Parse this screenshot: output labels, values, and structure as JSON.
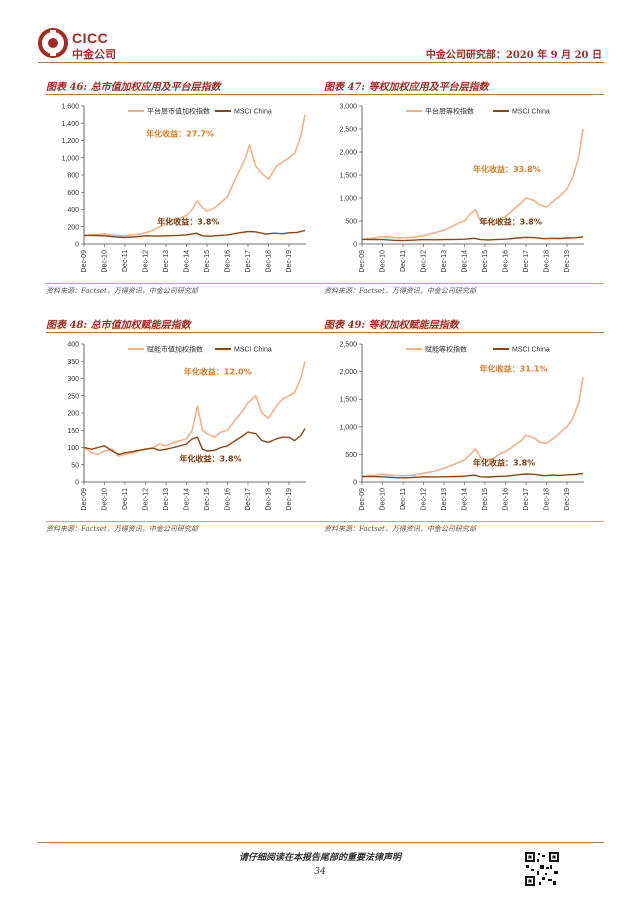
{
  "header": {
    "logo_text_top": "CICC",
    "logo_text_bottom": "中金公司",
    "right_text": "中金公司研究部：2020 年 9 月 20 日",
    "brand_color": "#a52a23"
  },
  "panels": [
    {
      "title": "图表 46: 总市值加权应用及平台层指数",
      "source": "资料来源：Factset，万得资讯，中金公司研究部",
      "annotations": {
        "top": "年化收益：27.7%",
        "bottom": "年化收益：3.8%"
      }
    },
    {
      "title": "图表 47: 等权加权应用及平台层指数",
      "source": "资料来源：Factset，万得资讯，中金公司研究部",
      "annotations": {
        "top": "年化收益：33.8%",
        "bottom": "年化收益：3.8%"
      }
    },
    {
      "title": "图表 48: 总市值加权赋能层指数",
      "source": "资料来源：Factset，万得资讯，中金公司研究部",
      "annotations": {
        "top": "年化收益：12.0%",
        "bottom": "年化收益：3.8%"
      }
    },
    {
      "title": "图表 49: 等权加权赋能层指数",
      "source": "资料来源：Factset，万得资讯，中金公司研究部",
      "annotations": {
        "top": "年化收益：31.1%",
        "bottom": "年化收益：3.8%"
      }
    }
  ],
  "footer": {
    "disclaimer": "请仔细阅读在本报告尾部的重要法律声明",
    "page_number": "34"
  },
  "colors": {
    "index_line": "#f4b183",
    "msci_line": "#8b4513",
    "annot_top": "#e07b20",
    "annot_bottom": "#7a3b10"
  },
  "chart_data": [
    {
      "type": "line",
      "x_ticks": [
        "Dec-09",
        "Dec-10",
        "Dec-11",
        "Dec-12",
        "Dec-13",
        "Dec-14",
        "Dec-15",
        "Dec-16",
        "Dec-17",
        "Dec-18",
        "Dec-19"
      ],
      "ylim": [
        0,
        1600
      ],
      "y_ticks": [
        0,
        200,
        400,
        600,
        800,
        1000,
        1200,
        1400,
        1600
      ],
      "series": [
        {
          "name": "平台层市值加权指数",
          "color": "#f4b183",
          "x": [
            2009.92,
            2010.5,
            2010.92,
            2011.5,
            2011.92,
            2012.5,
            2012.92,
            2013.3,
            2013.6,
            2013.92,
            2014.3,
            2014.6,
            2014.92,
            2015.2,
            2015.45,
            2015.7,
            2015.92,
            2016.3,
            2016.6,
            2016.92,
            2017.2,
            2017.5,
            2017.8,
            2018.0,
            2018.3,
            2018.6,
            2018.92,
            2019.3,
            2019.6,
            2019.92,
            2020.2,
            2020.5,
            2020.7
          ],
          "y": [
            100,
            110,
            115,
            100,
            95,
            110,
            130,
            160,
            200,
            230,
            280,
            300,
            330,
            400,
            500,
            420,
            380,
            420,
            480,
            550,
            700,
            850,
            1000,
            1150,
            900,
            820,
            750,
            900,
            950,
            1000,
            1050,
            1250,
            1500
          ]
        },
        {
          "name": "MSCI China",
          "color": "#8b4513",
          "x": [
            2009.92,
            2010.5,
            2010.92,
            2011.5,
            2011.92,
            2012.5,
            2012.92,
            2013.5,
            2013.92,
            2014.5,
            2014.92,
            2015.4,
            2015.7,
            2016.1,
            2016.5,
            2016.92,
            2017.5,
            2017.92,
            2018.3,
            2018.8,
            2019.2,
            2019.6,
            2019.92,
            2020.3,
            2020.7
          ],
          "y": [
            100,
            98,
            95,
            80,
            75,
            85,
            95,
            92,
            95,
            100,
            105,
            125,
            95,
            90,
            100,
            105,
            130,
            145,
            140,
            115,
            125,
            120,
            130,
            135,
            155
          ]
        }
      ],
      "annotations": [
        "年化收益：27.7%",
        "年化收益：3.8%"
      ]
    },
    {
      "type": "line",
      "x_ticks": [
        "Dec-09",
        "Dec-10",
        "Dec-11",
        "Dec-12",
        "Dec-13",
        "Dec-14",
        "Dec-15",
        "Dec-16",
        "Dec-17",
        "Dec-18",
        "Dec-19"
      ],
      "ylim": [
        0,
        3000
      ],
      "y_ticks": [
        0,
        500,
        1000,
        1500,
        2000,
        2500,
        3000
      ],
      "series": [
        {
          "name": "平台层等权指数",
          "color": "#f4b183",
          "x": [
            2009.92,
            2010.5,
            2010.92,
            2011.5,
            2011.92,
            2012.5,
            2012.92,
            2013.5,
            2013.92,
            2014.3,
            2014.6,
            2014.92,
            2015.2,
            2015.45,
            2015.7,
            2015.92,
            2016.3,
            2016.6,
            2016.92,
            2017.3,
            2017.7,
            2017.92,
            2018.3,
            2018.6,
            2018.92,
            2019.3,
            2019.6,
            2019.92,
            2020.2,
            2020.5,
            2020.7
          ],
          "y": [
            100,
            130,
            160,
            140,
            130,
            150,
            180,
            250,
            300,
            380,
            450,
            500,
            650,
            750,
            500,
            450,
            480,
            520,
            600,
            750,
            900,
            1000,
            950,
            850,
            800,
            950,
            1050,
            1200,
            1450,
            1900,
            2500
          ]
        },
        {
          "name": "MSCI China",
          "color": "#8b4513",
          "x": [
            2009.92,
            2010.5,
            2010.92,
            2011.5,
            2011.92,
            2012.5,
            2012.92,
            2013.5,
            2013.92,
            2014.5,
            2014.92,
            2015.4,
            2015.7,
            2016.1,
            2016.5,
            2016.92,
            2017.5,
            2017.92,
            2018.3,
            2018.8,
            2019.2,
            2019.6,
            2019.92,
            2020.3,
            2020.7
          ],
          "y": [
            100,
            98,
            95,
            80,
            75,
            85,
            95,
            92,
            95,
            100,
            105,
            125,
            95,
            90,
            100,
            105,
            130,
            145,
            140,
            115,
            125,
            120,
            130,
            135,
            155
          ]
        }
      ],
      "annotations": [
        "年化收益：33.8%",
        "年化收益：3.8%"
      ]
    },
    {
      "type": "line",
      "x_ticks": [
        "Dec-09",
        "Dec-10",
        "Dec-11",
        "Dec-12",
        "Dec-13",
        "Dec-14",
        "Dec-15",
        "Dec-16",
        "Dec-17",
        "Dec-18",
        "Dec-19"
      ],
      "ylim": [
        0,
        400
      ],
      "y_ticks": [
        0,
        50,
        100,
        150,
        200,
        250,
        300,
        350,
        400
      ],
      "series": [
        {
          "name": "赋能市值加权指数",
          "color": "#f4b183",
          "x": [
            2009.92,
            2010.3,
            2010.6,
            2010.92,
            2011.3,
            2011.6,
            2011.92,
            2012.3,
            2012.6,
            2012.92,
            2013.3,
            2013.6,
            2013.92,
            2014.3,
            2014.6,
            2014.92,
            2015.2,
            2015.45,
            2015.7,
            2015.92,
            2016.3,
            2016.6,
            2016.92,
            2017.3,
            2017.7,
            2017.92,
            2018.3,
            2018.6,
            2018.92,
            2019.3,
            2019.6,
            2019.92,
            2020.2,
            2020.5,
            2020.7
          ],
          "y": [
            100,
            85,
            80,
            90,
            95,
            75,
            80,
            85,
            90,
            95,
            100,
            110,
            105,
            115,
            120,
            125,
            150,
            220,
            150,
            140,
            130,
            145,
            150,
            180,
            210,
            230,
            250,
            200,
            185,
            220,
            240,
            250,
            260,
            300,
            350
          ]
        },
        {
          "name": "MSCI China",
          "color": "#8b4513",
          "x": [
            2009.92,
            2010.3,
            2010.6,
            2010.92,
            2011.3,
            2011.6,
            2011.92,
            2012.3,
            2012.6,
            2012.92,
            2013.3,
            2013.6,
            2013.92,
            2014.3,
            2014.6,
            2014.92,
            2015.2,
            2015.45,
            2015.7,
            2015.92,
            2016.3,
            2016.6,
            2016.92,
            2017.3,
            2017.7,
            2017.92,
            2018.3,
            2018.6,
            2018.92,
            2019.3,
            2019.6,
            2019.92,
            2020.2,
            2020.5,
            2020.7
          ],
          "y": [
            100,
            95,
            100,
            105,
            90,
            80,
            85,
            88,
            92,
            95,
            98,
            92,
            95,
            100,
            105,
            110,
            125,
            130,
            95,
            90,
            92,
            100,
            105,
            120,
            135,
            145,
            140,
            120,
            115,
            125,
            130,
            130,
            120,
            135,
            155
          ]
        }
      ],
      "annotations": [
        "年化收益：12.0%",
        "年化收益：3.8%"
      ]
    },
    {
      "type": "line",
      "x_ticks": [
        "Dec-09",
        "Dec-10",
        "Dec-11",
        "Dec-12",
        "Dec-13",
        "Dec-14",
        "Dec-15",
        "Dec-16",
        "Dec-17",
        "Dec-18",
        "Dec-19"
      ],
      "ylim": [
        0,
        2500
      ],
      "y_ticks": [
        0,
        500,
        1000,
        1500,
        2000,
        2500
      ],
      "series": [
        {
          "name": "赋能等权指数",
          "color": "#f4b183",
          "x": [
            2009.92,
            2010.5,
            2010.92,
            2011.5,
            2011.92,
            2012.5,
            2012.92,
            2013.5,
            2013.92,
            2014.3,
            2014.6,
            2014.92,
            2015.2,
            2015.45,
            2015.7,
            2015.92,
            2016.3,
            2016.6,
            2016.92,
            2017.3,
            2017.7,
            2017.92,
            2018.3,
            2018.6,
            2018.92,
            2019.3,
            2019.6,
            2019.92,
            2020.2,
            2020.5,
            2020.7
          ],
          "y": [
            100,
            120,
            140,
            120,
            110,
            130,
            160,
            200,
            250,
            300,
            350,
            400,
            500,
            600,
            450,
            400,
            420,
            500,
            550,
            650,
            750,
            850,
            800,
            720,
            700,
            800,
            900,
            1000,
            1150,
            1450,
            1900
          ]
        },
        {
          "name": "MSCI China",
          "color": "#8b4513",
          "x": [
            2009.92,
            2010.5,
            2010.92,
            2011.5,
            2011.92,
            2012.5,
            2012.92,
            2013.5,
            2013.92,
            2014.5,
            2014.92,
            2015.4,
            2015.7,
            2016.1,
            2016.5,
            2016.92,
            2017.5,
            2017.92,
            2018.3,
            2018.8,
            2019.2,
            2019.6,
            2019.92,
            2020.3,
            2020.7
          ],
          "y": [
            100,
            98,
            95,
            80,
            75,
            85,
            95,
            92,
            95,
            100,
            105,
            125,
            95,
            90,
            100,
            105,
            130,
            145,
            140,
            115,
            125,
            120,
            130,
            135,
            155
          ]
        }
      ],
      "annotations": [
        "年化收益：31.1%",
        "年化收益：3.8%"
      ]
    }
  ]
}
